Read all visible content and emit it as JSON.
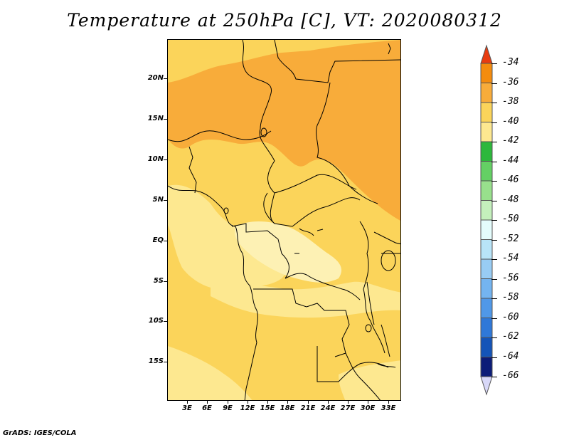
{
  "title": "Temperature at 250hPa [C], VT: 2020080312",
  "footer": "GrADS: IGES/COLA",
  "lat_labels": [
    "20N",
    "15N",
    "10N",
    "5N",
    "EQ",
    "5S",
    "10S",
    "15S"
  ],
  "lon_labels": [
    "3E",
    "6E",
    "9E",
    "12E",
    "15E",
    "18E",
    "21E",
    "24E",
    "27E",
    "30E",
    "33E"
  ],
  "colorbar": {
    "labels": [
      "-34",
      "-36",
      "-38",
      "-40",
      "-42",
      "-44",
      "-46",
      "-48",
      "-50",
      "-52",
      "-54",
      "-56",
      "-58",
      "-60",
      "-62",
      "-64",
      "-66"
    ],
    "colors": [
      "#f05a10",
      "#f48c0e",
      "#f8ac3a",
      "#fbd45a",
      "#fde890",
      "#2db83c",
      "#64d064",
      "#98e08c",
      "#c4f0bc",
      "#e4fcfc",
      "#b8e4f8",
      "#98ccf4",
      "#74b4f0",
      "#5098e8",
      "#2f78d8",
      "#1454b8",
      "#0c1c78"
    ],
    "top_arrow_color": "#e83c10",
    "bottom_arrow_color": "#d8d8f8"
  },
  "field_colors": {
    "warm_orange": "#f8ac3a",
    "yellow": "#fbd45a",
    "light_yellow": "#fde890",
    "pale_yellow": "#fdf1b4"
  }
}
